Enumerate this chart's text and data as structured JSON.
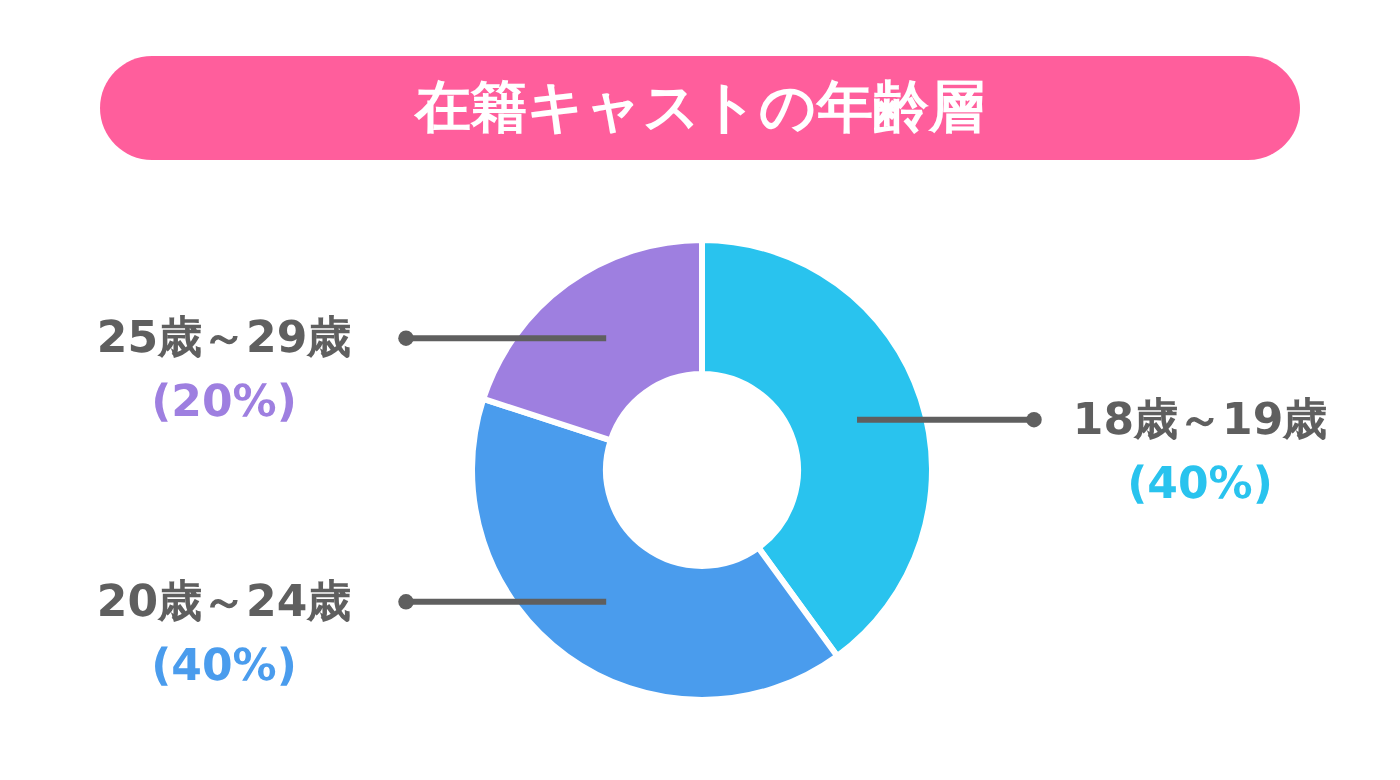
{
  "chart_data": {
    "type": "donut",
    "title": "在籍キャストの年齢層",
    "categories": [
      "18歳～19歳",
      "20歳～24歳",
      "25歳～29歳"
    ],
    "values": [
      40,
      40,
      20
    ],
    "colors": [
      "#29c3ee",
      "#4a9ced",
      "#9e7fe0"
    ],
    "value_labels": [
      "(40%)",
      "(40%)",
      "(20%)"
    ]
  }
}
